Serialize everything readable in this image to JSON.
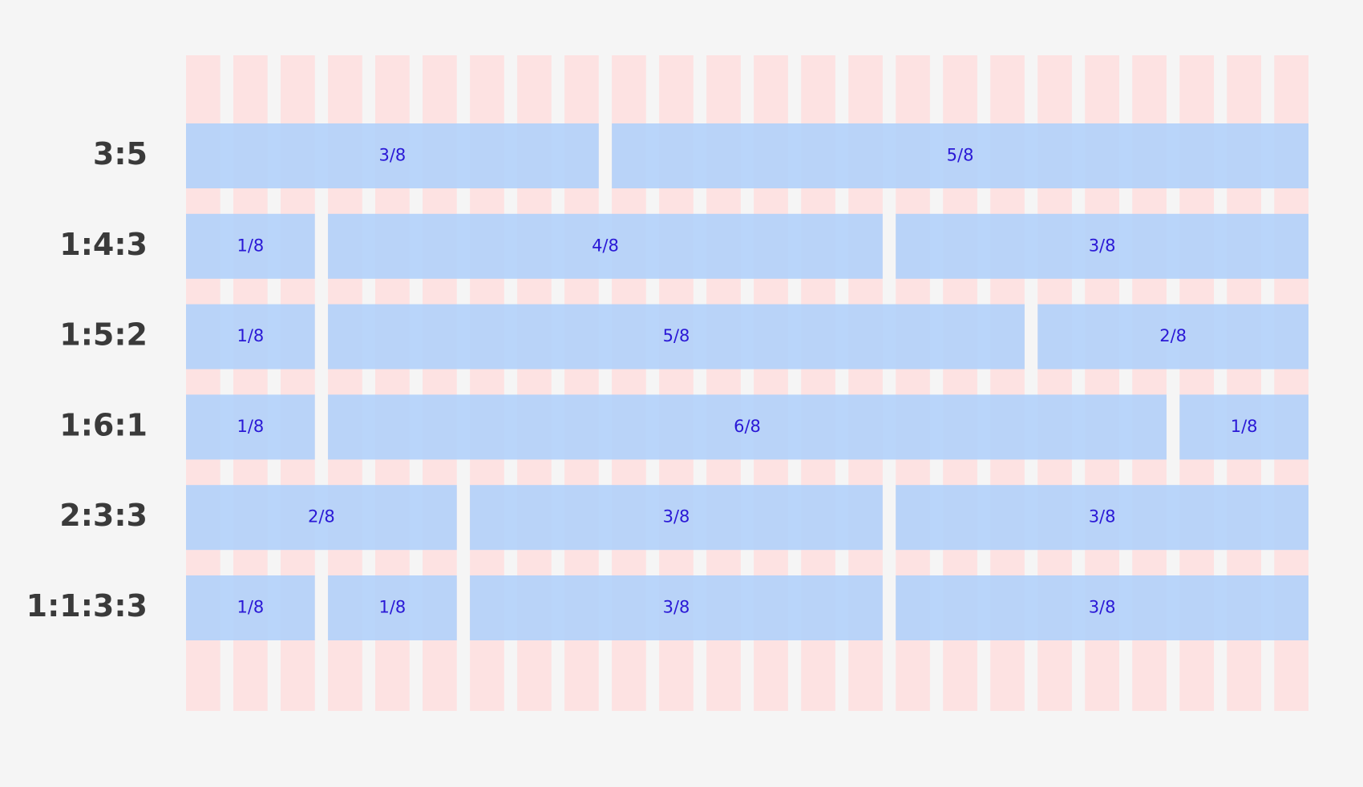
{
  "rows": [
    {
      "label": "3:5",
      "segments": [
        "3/8",
        "5/8"
      ]
    },
    {
      "label": "1:4:3",
      "segments": [
        "1/8",
        "4/8",
        "3/8"
      ]
    },
    {
      "label": "1:5:2",
      "segments": [
        "1/8",
        "5/8",
        "2/8"
      ]
    },
    {
      "label": "1:6:1",
      "segments": [
        "1/8",
        "6/8",
        "1/8"
      ]
    },
    {
      "label": "2:3:3",
      "segments": [
        "2/8",
        "3/8",
        "3/8"
      ]
    },
    {
      "label": "1:1:3:3",
      "segments": [
        "1/8",
        "1/8",
        "3/8",
        "3/8"
      ]
    }
  ]
}
